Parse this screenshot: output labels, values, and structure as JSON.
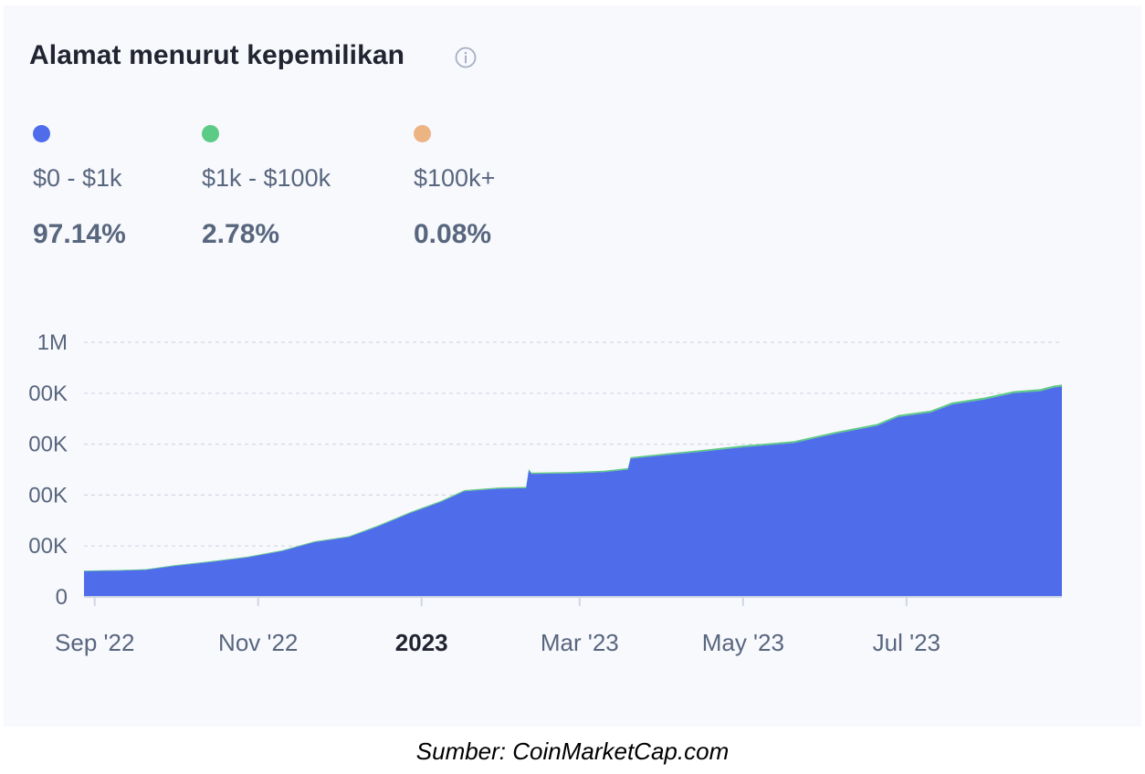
{
  "widget": {
    "title": "Alamat menurut kepemilikan",
    "info_icon": "info-circle-icon"
  },
  "legend": [
    {
      "label": "$0 - $1k",
      "percent": "97.14%",
      "color": "#4f6ceb"
    },
    {
      "label": "$1k - $100k",
      "percent": "2.78%",
      "color": "#5bcb85"
    },
    {
      "label": "$100k+",
      "percent": "0.08%",
      "color": "#ecb483"
    }
  ],
  "chart_data": {
    "type": "area",
    "stacked": true,
    "y_ticks": [
      "0",
      "00K",
      "00K",
      "00K",
      "00K",
      "1M"
    ],
    "y_tick_values": [
      0,
      200000,
      400000,
      600000,
      800000,
      1000000
    ],
    "ylim": [
      0,
      1000000
    ],
    "x_ticks": [
      {
        "label": "Sep '22",
        "date": "2022-09-01",
        "bold": false
      },
      {
        "label": "Nov '22",
        "date": "2022-11-01",
        "bold": false
      },
      {
        "label": "2023",
        "date": "2023-01-01",
        "bold": true
      },
      {
        "label": "Mar '23",
        "date": "2023-03-01",
        "bold": false
      },
      {
        "label": "May '23",
        "date": "2023-05-01",
        "bold": false
      },
      {
        "label": "Jul '23",
        "date": "2023-07-01",
        "bold": false
      }
    ],
    "xlim": [
      "2022-08-28",
      "2023-08-28"
    ],
    "grid": true,
    "series": [
      {
        "name": "$0 - $1k",
        "color": "#4f6ceb",
        "points": [
          [
            "2022-08-28",
            101000
          ],
          [
            "2022-09-10",
            103000
          ],
          [
            "2022-09-20",
            106000
          ],
          [
            "2022-10-01",
            122000
          ],
          [
            "2022-10-15",
            138000
          ],
          [
            "2022-10-28",
            155000
          ],
          [
            "2022-11-10",
            180000
          ],
          [
            "2022-11-22",
            215000
          ],
          [
            "2022-12-05",
            235000
          ],
          [
            "2022-12-16",
            278000
          ],
          [
            "2022-12-28",
            330000
          ],
          [
            "2023-01-08",
            372000
          ],
          [
            "2023-01-17",
            415000
          ],
          [
            "2023-01-30",
            425000
          ],
          [
            "2023-02-09",
            427000
          ],
          [
            "2023-02-10",
            497000
          ],
          [
            "2023-02-11",
            483000
          ],
          [
            "2023-02-25",
            485000
          ],
          [
            "2023-03-10",
            490000
          ],
          [
            "2023-03-19",
            500000
          ],
          [
            "2023-03-20",
            543000
          ],
          [
            "2023-04-01",
            556000
          ],
          [
            "2023-04-15",
            570000
          ],
          [
            "2023-05-01",
            588000
          ],
          [
            "2023-05-20",
            605000
          ],
          [
            "2023-06-05",
            642000
          ],
          [
            "2023-06-20",
            672000
          ],
          [
            "2023-06-28",
            707000
          ],
          [
            "2023-07-10",
            724000
          ],
          [
            "2023-07-18",
            756000
          ],
          [
            "2023-07-30",
            775000
          ],
          [
            "2023-08-10",
            800000
          ],
          [
            "2023-08-20",
            808000
          ],
          [
            "2023-08-25",
            822000
          ],
          [
            "2023-08-28",
            826000
          ]
        ]
      },
      {
        "name": "$1k - $100k",
        "color": "#5bcb85",
        "points": [
          [
            "2022-08-28",
            2500
          ],
          [
            "2022-12-01",
            3500
          ],
          [
            "2023-02-10",
            5000
          ],
          [
            "2023-05-01",
            6500
          ],
          [
            "2023-08-28",
            8000
          ]
        ]
      },
      {
        "name": "$100k+",
        "color": "#ecb483",
        "points": [
          [
            "2022-08-28",
            100
          ],
          [
            "2023-08-28",
            250
          ]
        ]
      }
    ]
  },
  "caption": "Sumber: CoinMarketCap.com"
}
